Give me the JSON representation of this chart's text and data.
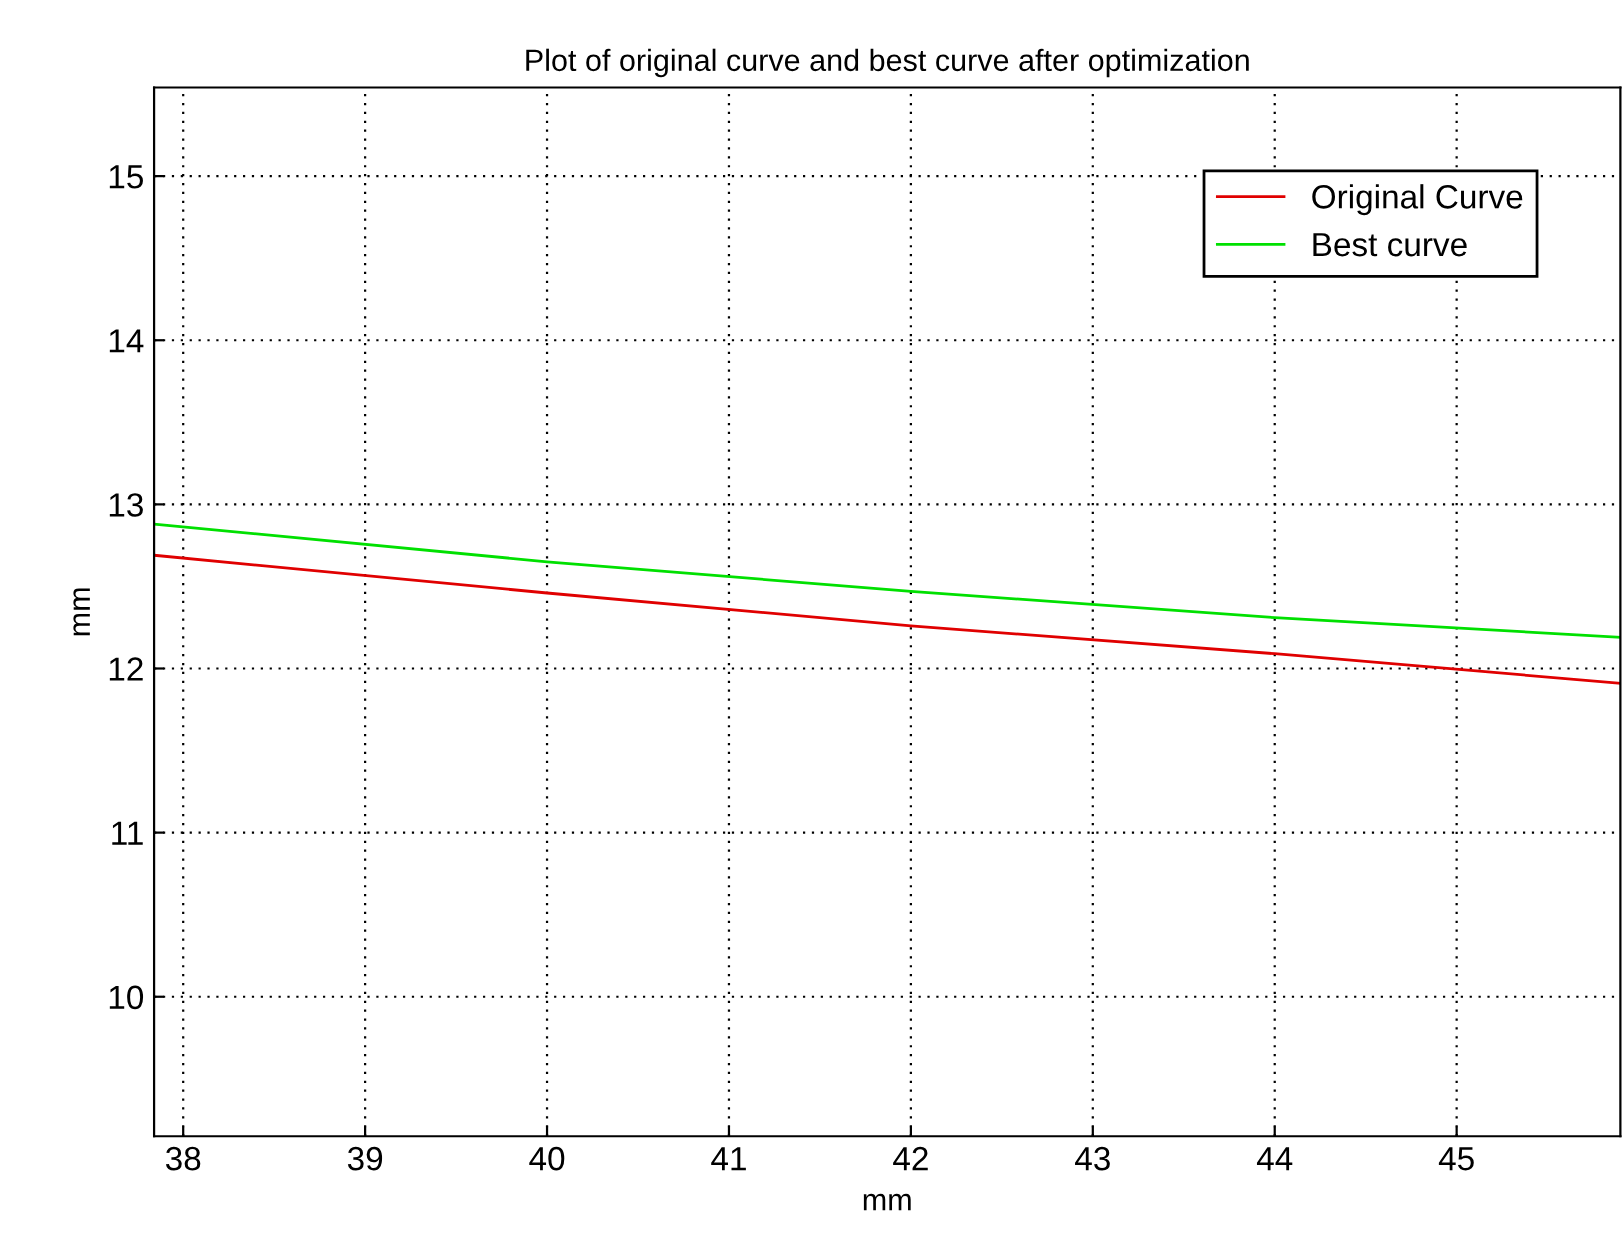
{
  "chart_data": {
    "type": "line",
    "title": "Plot of original curve and best curve after optimization",
    "xlabel": "mm",
    "ylabel": "mm",
    "series": [
      {
        "name": "Original Curve",
        "color": "#e00000",
        "x": [
          37.84,
          40,
          42,
          44,
          45.9
        ],
        "values": [
          12.69,
          12.46,
          12.26,
          12.09,
          11.91
        ]
      },
      {
        "name": "Best curve",
        "color": "#00e000",
        "x": [
          37.84,
          40,
          42,
          44,
          45.9
        ],
        "values": [
          12.88,
          12.65,
          12.47,
          12.31,
          12.19
        ]
      }
    ],
    "xlim": [
      37.84,
      45.9
    ],
    "ylim": [
      9.15,
      15.54
    ],
    "xticks": [
      38,
      39,
      40,
      41,
      42,
      43,
      44,
      45
    ],
    "yticks": [
      10,
      11,
      12,
      13,
      14,
      15
    ],
    "grid": true,
    "legend": "top right",
    "line_style": "solid",
    "marker": "none"
  }
}
